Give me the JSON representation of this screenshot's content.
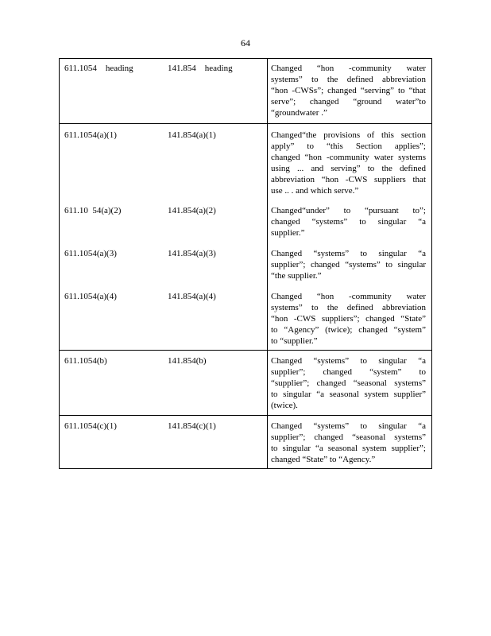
{
  "page_number": "64",
  "rows": [
    {
      "entries": [
        {
          "old": "611.1054    heading",
          "new": "141.854    heading",
          "change": [
            "Changed    “hon -community    water",
            "systems”   to the  defined   abbreviation",
            "“hon -CWSs”;   changed   “serving”   to “that",
            "serve”;  changed   “ground   water”to",
            "“groundwater    .”"
          ]
        }
      ]
    },
    {
      "entries": [
        {
          "old": "611.1054(a)(1)",
          "new": "141.854(a)(1)",
          "change": [
            "Changed“the     provisions   of this  section",
            "apply”   to “this  Section   applies”;",
            "changed   “hon -community    water  systems",
            "using  ... and  serving”   to the  defined",
            "abbreviation    “hon -CWS  suppliers   that",
            "use  .. .  and  which   serve.”"
          ]
        },
        {
          "old": "611.10  54(a)(2)",
          "new": "141.854(a)(2)",
          "change": [
            "Changed“under”      to “pursuant    to”;",
            "changed   “systems”    to singular   “a",
            "supplier.”"
          ]
        },
        {
          "old": "611.1054(a)(3)",
          "new": "141.854(a)(3)",
          "change": [
            "Changed   “systems”   to singular   “a",
            "supplier”;  changed   “systems”   to singular",
            "“the  supplier.”"
          ]
        },
        {
          "old": "611.1054(a)(4)",
          "new": "141.854(a)(4)",
          "change": [
            "Changed    “hon -community    water",
            "systems”   to the  defined   abbreviation",
            "“hon -CWS  suppliers”;   changed   “State”",
            "to “Agency”   (twice);   changed   “system”",
            "to “supplier.”"
          ]
        }
      ]
    },
    {
      "entries": [
        {
          "old": "611.1054(b)",
          "new": "141.854(b)",
          "change": [
            "Changed   “systems”   to singular   “a",
            "supplier”;   changed   “system”    to",
            "“supplier”;    changed   “seasonal    systems”",
            "to singular   “a seasonal   system   supplier”",
            "(twice)."
          ]
        }
      ]
    },
    {
      "entries": [
        {
          "old": "611.1054(c)(1)",
          "new": "141.854(c)(1)",
          "change": [
            "Changed   “systems”   to singular   “a",
            "supplier”;   changed   “seasonal    systems”",
            "to singular   “a seasonal   system   supplier”;",
            "changed   “State”    to “Agency.”"
          ]
        }
      ]
    }
  ]
}
